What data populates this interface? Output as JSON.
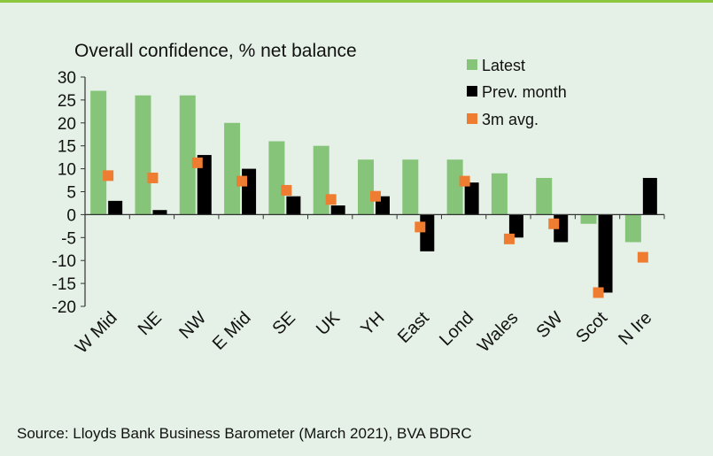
{
  "title": "Overall confidence, % net balance",
  "source": "Source: Lloyds Bank Business Barometer (March 2021), BVA BDRC",
  "colors": {
    "latest": "#86c47a",
    "prev": "#000000",
    "avg": "#ee7d31",
    "background": "#e5f1e6",
    "rule": "#8dc63f"
  },
  "chart_data": {
    "type": "bar",
    "title": "Overall confidence, % net balance",
    "categories": [
      "W Mid",
      "NE",
      "NW",
      "E Mid",
      "SE",
      "UK",
      "YH",
      "East",
      "Lond",
      "Wales",
      "SW",
      "Scot",
      "N Ire"
    ],
    "series": [
      {
        "name": "Latest",
        "type": "bar",
        "values": [
          27,
          26,
          26,
          20,
          16,
          15,
          12,
          12,
          12,
          9,
          8,
          -2,
          -6
        ]
      },
      {
        "name": "Prev. month",
        "type": "bar",
        "values": [
          3,
          1,
          13,
          10,
          4,
          2,
          4,
          -8,
          7,
          -5,
          -6,
          -17,
          8
        ]
      },
      {
        "name": "3m avg.",
        "type": "scatter",
        "values": [
          8.5,
          8,
          11.3,
          7.3,
          5.3,
          3.3,
          4,
          -2.7,
          7.3,
          -5.3,
          -2,
          -17,
          -9.3
        ]
      }
    ],
    "ylim": [
      -20,
      30
    ],
    "yticks": [
      "30",
      "25",
      "20",
      "15",
      "10",
      "5",
      "0",
      "-5",
      "-10",
      "-15",
      "-20"
    ],
    "legend_position": "top-right",
    "grid": false
  }
}
